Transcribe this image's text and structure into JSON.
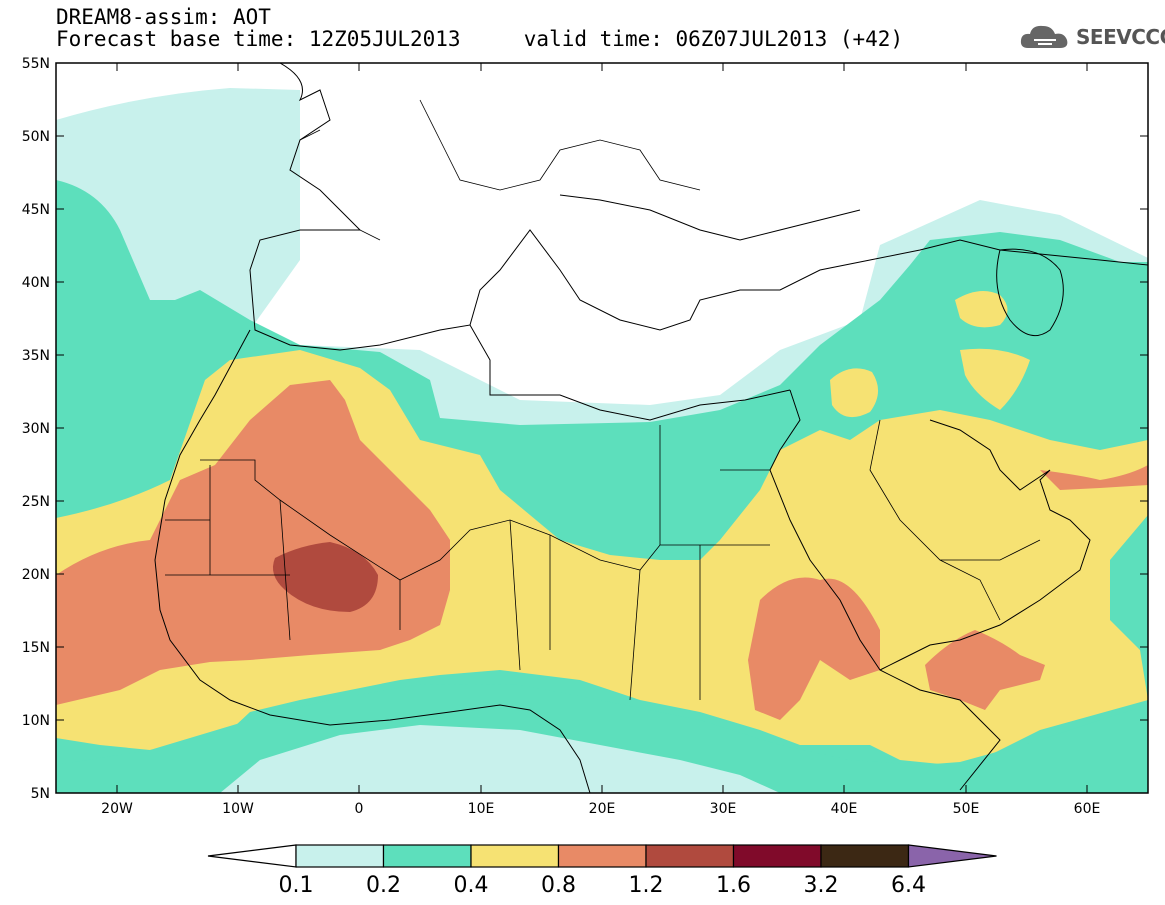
{
  "title_line1": "DREAM8-assim: AOT",
  "title_line2": "Forecast base time: 12Z05JUL2013     valid time: 06Z07JUL2013 (+42)",
  "logo_text": "SEEVCCC",
  "logo_icon": "cloud-icon",
  "map_data": {
    "type": "filled-contour-map",
    "region": {
      "lon": [
        -25,
        65
      ],
      "lat": [
        5,
        55
      ]
    },
    "lat_ticks": [
      "5N",
      "10N",
      "15N",
      "20N",
      "25N",
      "30N",
      "35N",
      "40N",
      "45N",
      "50N",
      "55N"
    ],
    "lon_ticks": [
      "20W",
      "10W",
      "0",
      "10E",
      "20E",
      "30E",
      "40E",
      "50E",
      "60E"
    ],
    "legend_values": [
      "0.1",
      "0.2",
      "0.4",
      "0.8",
      "1.2",
      "1.6",
      "3.2",
      "6.4"
    ],
    "legend_colors": [
      "#ffffff",
      "#c8f1ec",
      "#5ddfbc",
      "#f6e273",
      "#e88a66",
      "#b04a3e",
      "#800a2a",
      "#3c2814",
      "#8a64aa"
    ]
  }
}
